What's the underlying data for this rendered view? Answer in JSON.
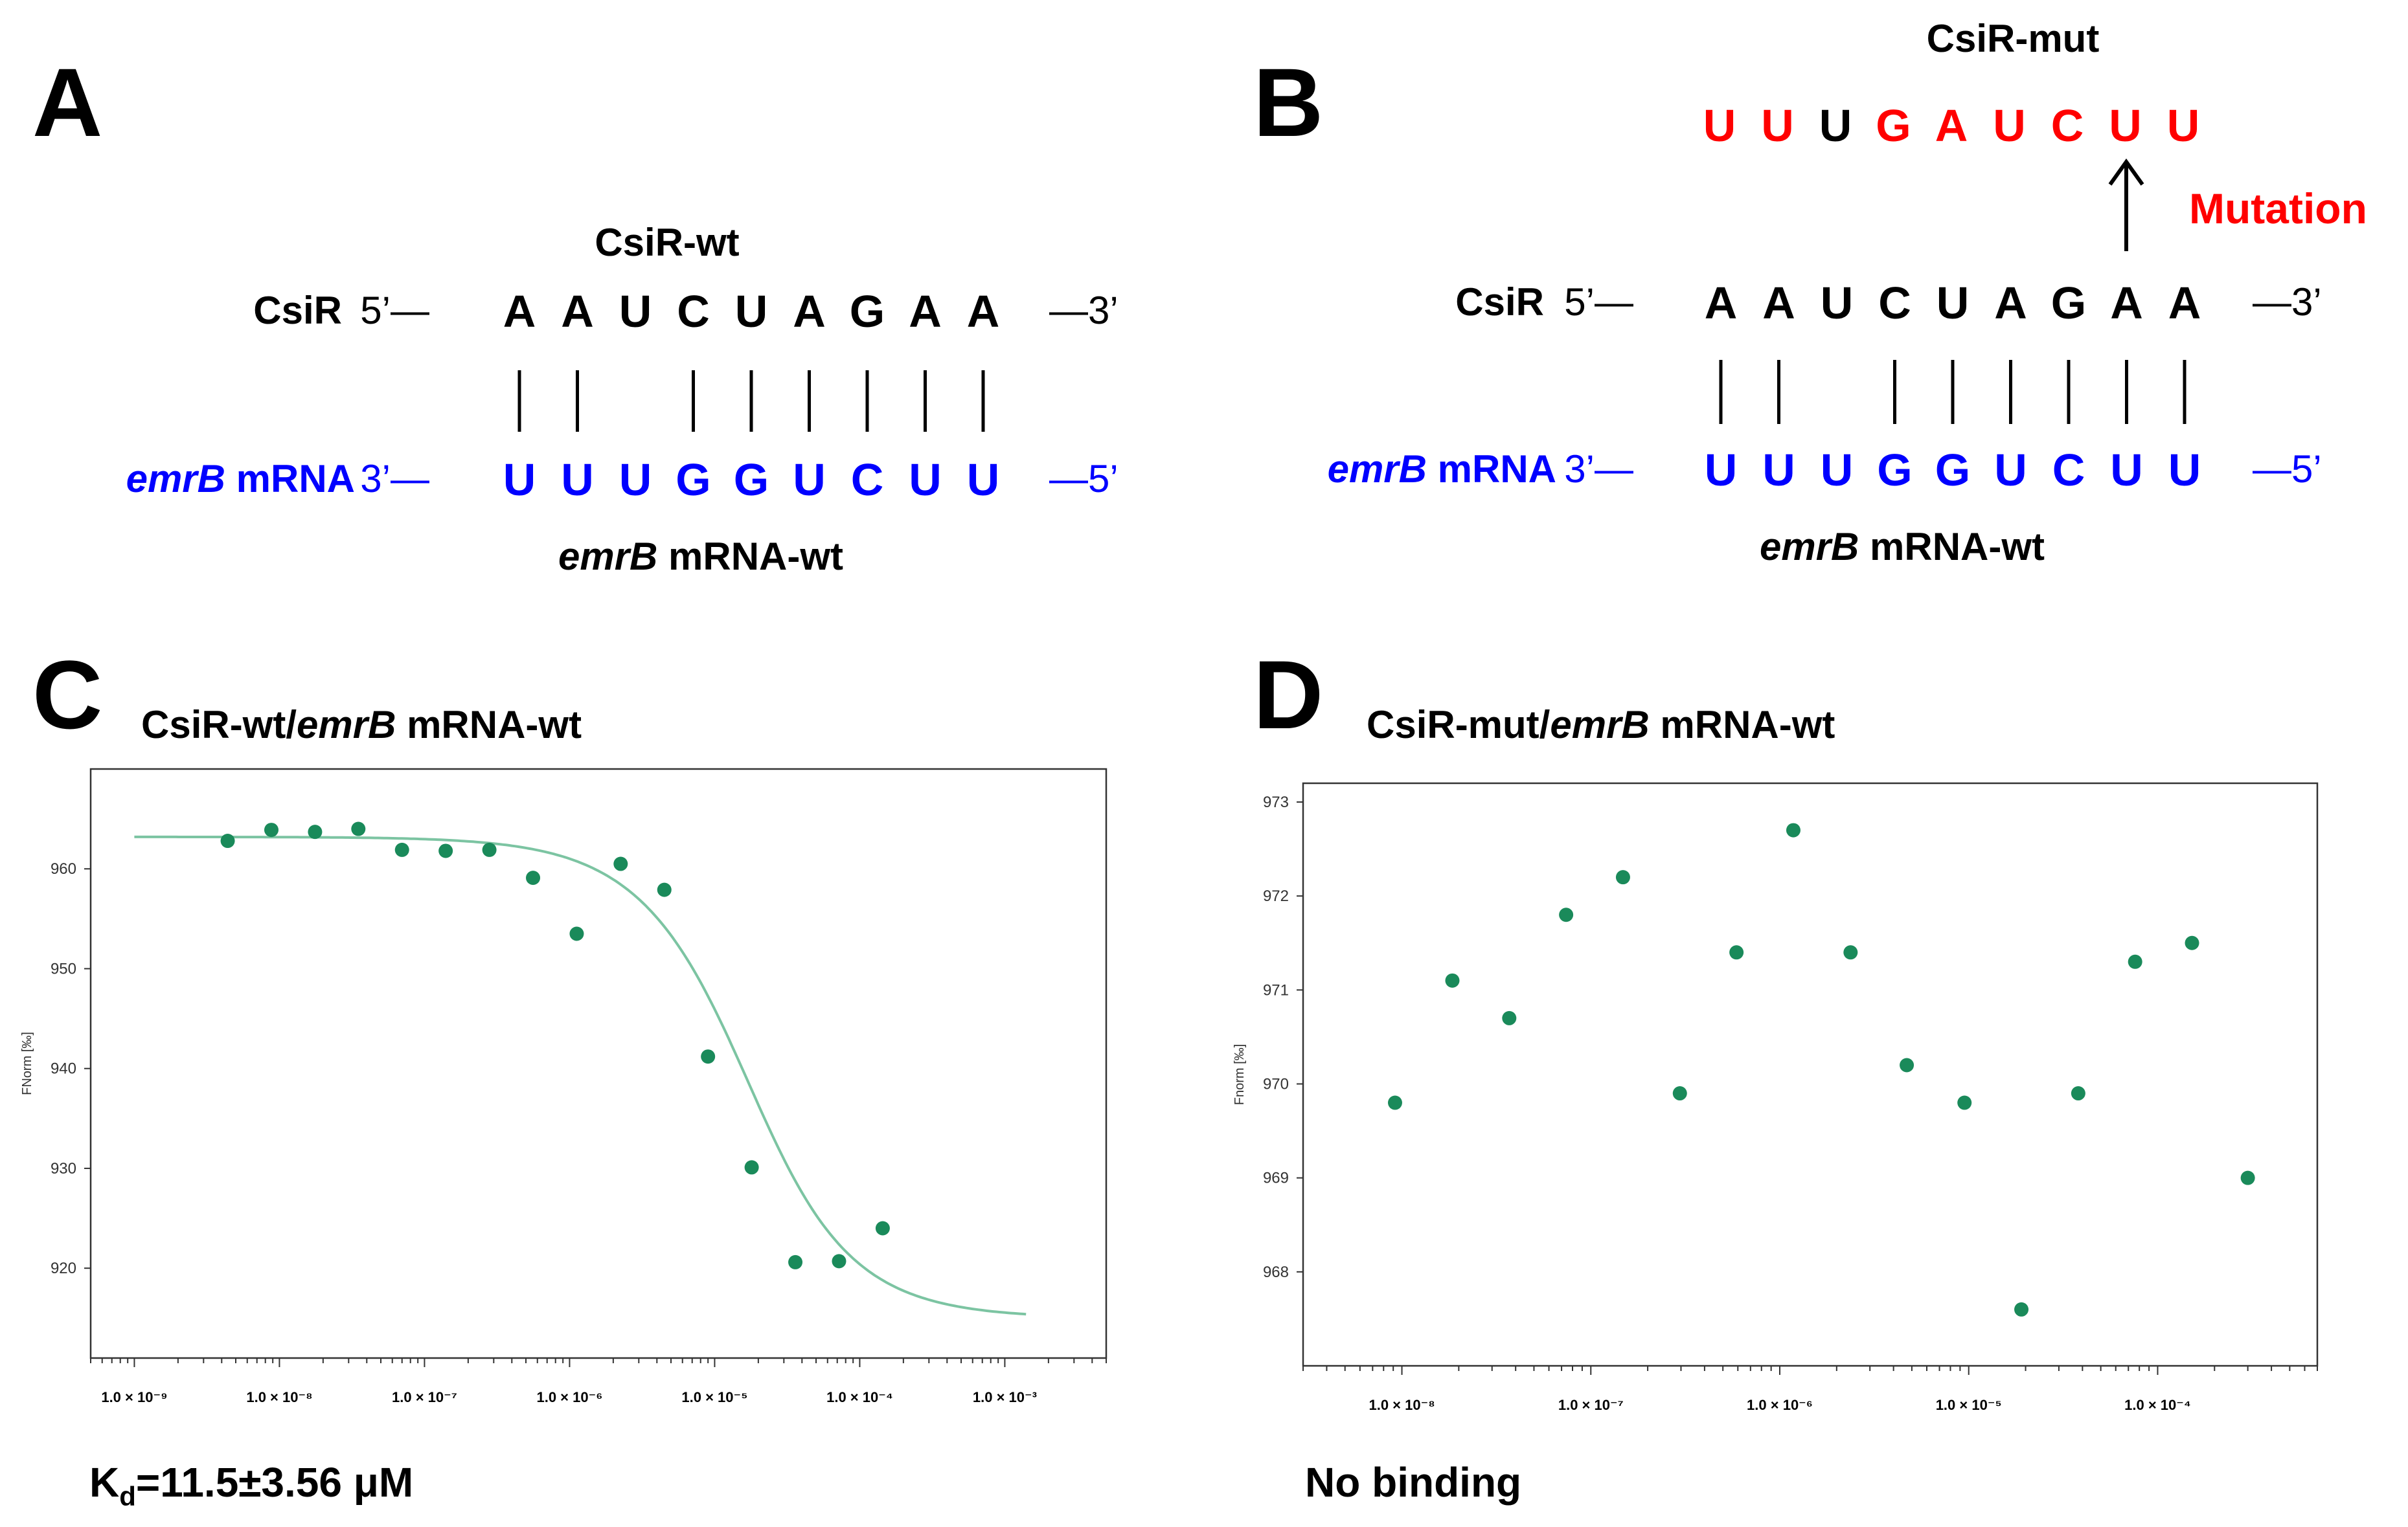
{
  "colors": {
    "wt": "#0000ff",
    "mut": "#ff0000",
    "black": "#000000",
    "point": "#1a8a5a",
    "fit": "#7cc4a2"
  },
  "panels": {
    "a": {
      "letter": "A"
    },
    "b": {
      "letter": "B"
    },
    "c": {
      "letter": "C"
    },
    "d": {
      "letter": "D"
    }
  },
  "panel_a": {
    "csir_title": "CsiR-wt",
    "csir_label": "CsiR",
    "csir_left": "5’—",
    "csir_right": "—3’",
    "csir_seq": [
      "A",
      "A",
      "U",
      "C",
      "U",
      "A",
      "G",
      "A",
      "A"
    ],
    "pairs": [
      true,
      true,
      false,
      true,
      true,
      true,
      true,
      true,
      true
    ],
    "mrna_label_italic": "emrB",
    "mrna_label_rest": " mRNA",
    "mrna_left": "3’—",
    "mrna_right": "—5’",
    "mrna_seq": [
      "U",
      "U",
      "U",
      "G",
      "G",
      "U",
      "C",
      "U",
      "U"
    ],
    "mrna_title_italic": "emrB",
    "mrna_title_rest": " mRNA-wt"
  },
  "panel_b": {
    "mut_title": "CsiR-mut",
    "mut_seq": [
      {
        "base": "U",
        "mutated": true
      },
      {
        "base": "U",
        "mutated": true
      },
      {
        "base": "U",
        "mutated": false
      },
      {
        "base": "G",
        "mutated": true
      },
      {
        "base": "A",
        "mutated": true
      },
      {
        "base": "U",
        "mutated": true
      },
      {
        "base": "C",
        "mutated": true
      },
      {
        "base": "U",
        "mutated": true
      },
      {
        "base": "U",
        "mutated": true
      }
    ],
    "mutation_label": "Mutation",
    "csir_label": "CsiR",
    "csir_left": "5’—",
    "csir_right": "—3’",
    "csir_seq": [
      "A",
      "A",
      "U",
      "C",
      "U",
      "A",
      "G",
      "A",
      "A"
    ],
    "pairs": [
      true,
      true,
      false,
      true,
      true,
      true,
      true,
      true,
      true
    ],
    "mrna_label_italic": "emrB",
    "mrna_label_rest": " mRNA",
    "mrna_left": "3’—",
    "mrna_right": "—5’",
    "mrna_seq": [
      "U",
      "U",
      "U",
      "G",
      "G",
      "U",
      "C",
      "U",
      "U"
    ],
    "mrna_title_italic": "emrB",
    "mrna_title_rest": " mRNA-wt"
  },
  "chart_data": [
    {
      "type": "scatter",
      "panel": "C",
      "title_prefix": "CsiR-wt/",
      "title_italic": "emrB",
      "title_suffix": " mRNA-wt",
      "ylabel": "FNorm [‰]",
      "xscale": "log",
      "xlim": [
        5e-10,
        0.005
      ],
      "ylim": [
        911,
        970
      ],
      "yticks": [
        920,
        930,
        940,
        950,
        960
      ],
      "xticks": [
        {
          "v": 1e-09,
          "t": "1.0 × 10⁻⁹"
        },
        {
          "v": 1e-08,
          "t": "1.0 × 10⁻⁸"
        },
        {
          "v": 1e-07,
          "t": "1.0 × 10⁻⁷"
        },
        {
          "v": 1e-06,
          "t": "1.0 × 10⁻⁶"
        },
        {
          "v": 1e-05,
          "t": "1.0 × 10⁻⁵"
        },
        {
          "v": 0.0001,
          "t": "1.0 × 10⁻⁴"
        },
        {
          "v": 0.001,
          "t": "1.0 × 10⁻³"
        }
      ],
      "points": [
        {
          "x": 4.4e-09,
          "y": 962.8
        },
        {
          "x": 8.8e-09,
          "y": 963.9
        },
        {
          "x": 1.76e-08,
          "y": 963.7
        },
        {
          "x": 3.5e-08,
          "y": 964.0
        },
        {
          "x": 7e-08,
          "y": 961.9
        },
        {
          "x": 1.4e-07,
          "y": 961.8
        },
        {
          "x": 2.8e-07,
          "y": 961.9
        },
        {
          "x": 5.6e-07,
          "y": 959.1
        },
        {
          "x": 1.12e-06,
          "y": 953.5
        },
        {
          "x": 2.25e-06,
          "y": 960.5
        },
        {
          "x": 4.5e-06,
          "y": 957.9
        },
        {
          "x": 9e-06,
          "y": 941.2
        },
        {
          "x": 1.8e-05,
          "y": 930.1
        },
        {
          "x": 3.6e-05,
          "y": 920.6
        },
        {
          "x": 7.2e-05,
          "y": 920.7
        },
        {
          "x": 0.000144,
          "y": 924.0
        }
      ],
      "fit": {
        "model": "Kd",
        "top": 963.2,
        "bottom": 915.0,
        "kd": 1.15e-05,
        "conc": 1e-05,
        "xmin": 1e-09,
        "xmax": 0.0014
      },
      "kd_symbol": "K",
      "kd_subscript": "d",
      "kd_text": "=11.5±3.56 μM"
    },
    {
      "type": "scatter",
      "panel": "D",
      "title_prefix": "CsiR-mut/",
      "title_italic": "emrB",
      "title_suffix": " mRNA-wt",
      "ylabel": "Fnorm [‰]",
      "xscale": "log",
      "xlim": [
        3e-09,
        0.0007
      ],
      "ylim": [
        967.0,
        973.2
      ],
      "yticks": [
        968,
        969,
        970,
        971,
        972,
        973
      ],
      "xticks": [
        {
          "v": 1e-08,
          "t": "1.0 × 10⁻⁸"
        },
        {
          "v": 1e-07,
          "t": "1.0 × 10⁻⁷"
        },
        {
          "v": 1e-06,
          "t": "1.0 × 10⁻⁶"
        },
        {
          "v": 1e-05,
          "t": "1.0 × 10⁻⁵"
        },
        {
          "v": 0.0001,
          "t": "1.0 × 10⁻⁴"
        }
      ],
      "points": [
        {
          "x": 9.2e-09,
          "y": 969.8
        },
        {
          "x": 1.85e-08,
          "y": 971.1
        },
        {
          "x": 3.7e-08,
          "y": 970.7
        },
        {
          "x": 7.4e-08,
          "y": 971.8
        },
        {
          "x": 1.48e-07,
          "y": 972.2
        },
        {
          "x": 2.96e-07,
          "y": 969.9
        },
        {
          "x": 5.9e-07,
          "y": 971.4
        },
        {
          "x": 1.18e-06,
          "y": 972.7
        },
        {
          "x": 2.37e-06,
          "y": 971.4
        },
        {
          "x": 4.7e-06,
          "y": 970.2
        },
        {
          "x": 9.5e-06,
          "y": 969.8
        },
        {
          "x": 1.9e-05,
          "y": 967.6
        },
        {
          "x": 3.8e-05,
          "y": 969.9
        },
        {
          "x": 7.6e-05,
          "y": 971.3
        },
        {
          "x": 0.000152,
          "y": 971.5
        },
        {
          "x": 0.0003,
          "y": 969.0
        }
      ],
      "note": "No binding"
    }
  ]
}
